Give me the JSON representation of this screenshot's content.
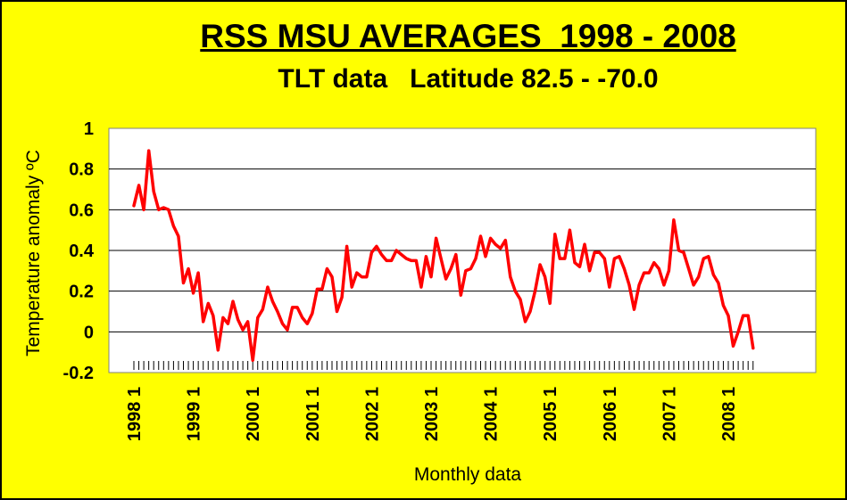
{
  "chart_data": {
    "type": "line",
    "title": "RSS MSU AVERAGES  1998 - 2008",
    "subtitle": "TLT data   Latitude 82.5 - -70.0",
    "xlabel": "Monthly data",
    "ylabel": "Temperature anomaly ºC",
    "ylim": [
      -0.2,
      1
    ],
    "yticks": [
      "1",
      "0.8",
      "0.6",
      "0.4",
      "0.2",
      "0",
      "-0.2"
    ],
    "xtick_labels": [
      "1998 1",
      "1999 1",
      "2000 1",
      "2001 1",
      "2002 1",
      "2003 1",
      "2004 1",
      "2005 1",
      "2006 1",
      "2007 1",
      "2008 1"
    ],
    "grid": true,
    "line_color": "#ff0000",
    "background": "#ffff00",
    "plot_background": "#ffffff",
    "series": [
      {
        "x": [
          "1998-01",
          "1998-02",
          "1998-03",
          "1998-04",
          "1998-05",
          "1998-06",
          "1998-07",
          "1998-08",
          "1998-09",
          "1998-10",
          "1998-11",
          "1998-12",
          "1999-01",
          "1999-02",
          "1999-03",
          "1999-04",
          "1999-05",
          "1999-06",
          "1999-07",
          "1999-08",
          "1999-09",
          "1999-10",
          "1999-11",
          "1999-12",
          "2000-01",
          "2000-02",
          "2000-03",
          "2000-04",
          "2000-05",
          "2000-06",
          "2000-07",
          "2000-08",
          "2000-09",
          "2000-10",
          "2000-11",
          "2000-12",
          "2001-01",
          "2001-02",
          "2001-03",
          "2001-04",
          "2001-05",
          "2001-06",
          "2001-07",
          "2001-08",
          "2001-09",
          "2001-10",
          "2001-11",
          "2001-12",
          "2002-01",
          "2002-02",
          "2002-03",
          "2002-04",
          "2002-05",
          "2002-06",
          "2002-07",
          "2002-08",
          "2002-09",
          "2002-10",
          "2002-11",
          "2002-12",
          "2003-01",
          "2003-02",
          "2003-03",
          "2003-04",
          "2003-05",
          "2003-06",
          "2003-07",
          "2003-08",
          "2003-09",
          "2003-10",
          "2003-11",
          "2003-12",
          "2004-01",
          "2004-02",
          "2004-03",
          "2004-04",
          "2004-05",
          "2004-06",
          "2004-07",
          "2004-08",
          "2004-09",
          "2004-10",
          "2004-11",
          "2004-12",
          "2005-01",
          "2005-02",
          "2005-03",
          "2005-04",
          "2005-05",
          "2005-06",
          "2005-07",
          "2005-08",
          "2005-09",
          "2005-10",
          "2005-11",
          "2005-12",
          "2006-01",
          "2006-02",
          "2006-03",
          "2006-04",
          "2006-05",
          "2006-06",
          "2006-07",
          "2006-08",
          "2006-09",
          "2006-10",
          "2006-11",
          "2006-12",
          "2007-01",
          "2007-02",
          "2007-03",
          "2007-04",
          "2007-05",
          "2007-06",
          "2007-07",
          "2007-08",
          "2007-09",
          "2007-10",
          "2007-11",
          "2007-12",
          "2008-01",
          "2008-02",
          "2008-03",
          "2008-04",
          "2008-05",
          "2008-06"
        ],
        "values": [
          0.62,
          0.72,
          0.6,
          0.89,
          0.69,
          0.6,
          0.61,
          0.6,
          0.52,
          0.47,
          0.24,
          0.31,
          0.19,
          0.29,
          0.05,
          0.14,
          0.08,
          -0.09,
          0.07,
          0.04,
          0.15,
          0.06,
          0.01,
          0.05,
          -0.14,
          0.07,
          0.11,
          0.22,
          0.15,
          0.1,
          0.04,
          0.01,
          0.12,
          0.12,
          0.07,
          0.04,
          0.09,
          0.21,
          0.21,
          0.31,
          0.27,
          0.1,
          0.17,
          0.42,
          0.22,
          0.29,
          0.27,
          0.27,
          0.39,
          0.42,
          0.38,
          0.35,
          0.35,
          0.4,
          0.38,
          0.36,
          0.35,
          0.35,
          0.22,
          0.37,
          0.27,
          0.46,
          0.36,
          0.26,
          0.31,
          0.38,
          0.18,
          0.3,
          0.31,
          0.36,
          0.47,
          0.37,
          0.46,
          0.43,
          0.41,
          0.45,
          0.27,
          0.2,
          0.16,
          0.05,
          0.1,
          0.2,
          0.33,
          0.27,
          0.14,
          0.48,
          0.36,
          0.36,
          0.5,
          0.34,
          0.32,
          0.43,
          0.3,
          0.39,
          0.39,
          0.36,
          0.22,
          0.36,
          0.37,
          0.31,
          0.23,
          0.11,
          0.23,
          0.29,
          0.29,
          0.34,
          0.31,
          0.23,
          0.3,
          0.55,
          0.4,
          0.39,
          0.31,
          0.23,
          0.27,
          0.36,
          0.37,
          0.28,
          0.24,
          0.13,
          0.08,
          -0.07,
          0.0,
          0.08,
          0.08,
          -0.08
        ]
      }
    ]
  }
}
